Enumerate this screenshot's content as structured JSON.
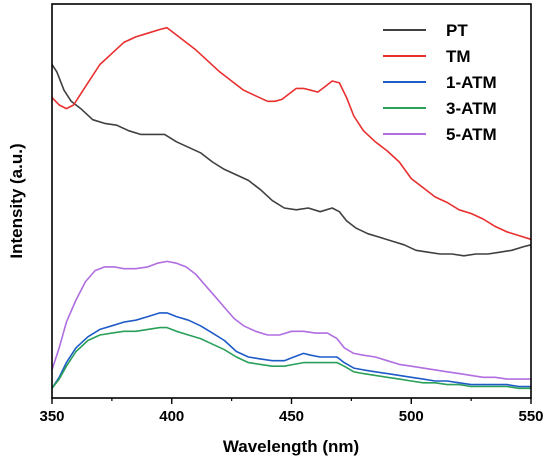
{
  "chart_data": {
    "type": "line",
    "xlabel": "Wavelength (nm)",
    "ylabel": "Intensity (a.u.)",
    "xlim": [
      350,
      550
    ],
    "ylim": [
      0,
      100
    ],
    "x_ticks": [
      "350",
      "400",
      "450",
      "500",
      "550"
    ],
    "y_ticks_shown": false,
    "grid": false,
    "legend_position": "top-right",
    "series": [
      {
        "name": "PT",
        "color": "#404040",
        "points": [
          [
            350,
            89
          ],
          [
            352,
            87
          ],
          [
            355,
            82
          ],
          [
            358,
            79
          ],
          [
            362,
            77
          ],
          [
            367,
            74
          ],
          [
            372,
            73
          ],
          [
            377,
            72.5
          ],
          [
            382,
            71
          ],
          [
            387,
            70
          ],
          [
            392,
            70
          ],
          [
            397,
            70
          ],
          [
            402,
            68
          ],
          [
            407,
            66.5
          ],
          [
            412,
            65
          ],
          [
            417,
            62.5
          ],
          [
            422,
            60.5
          ],
          [
            427,
            59
          ],
          [
            432,
            57.5
          ],
          [
            437,
            55
          ],
          [
            442,
            52
          ],
          [
            447,
            50
          ],
          [
            452,
            49.5
          ],
          [
            457,
            50
          ],
          [
            462,
            49
          ],
          [
            467,
            50
          ],
          [
            470,
            49
          ],
          [
            473,
            46.5
          ],
          [
            477,
            44.5
          ],
          [
            482,
            43
          ],
          [
            487,
            42
          ],
          [
            492,
            41
          ],
          [
            497,
            40
          ],
          [
            502,
            38.5
          ],
          [
            507,
            38
          ],
          [
            512,
            37.5
          ],
          [
            517,
            37.5
          ],
          [
            522,
            37
          ],
          [
            527,
            37.5
          ],
          [
            532,
            37.5
          ],
          [
            537,
            38
          ],
          [
            542,
            38.5
          ],
          [
            547,
            39.5
          ],
          [
            550,
            40
          ]
        ]
      },
      {
        "name": "TM",
        "color": "#e8302f",
        "points": [
          [
            350,
            80
          ],
          [
            353,
            78
          ],
          [
            356,
            77
          ],
          [
            359,
            78
          ],
          [
            362,
            81
          ],
          [
            366,
            85
          ],
          [
            370,
            89
          ],
          [
            375,
            92
          ],
          [
            380,
            95
          ],
          [
            385,
            96.5
          ],
          [
            390,
            97.5
          ],
          [
            395,
            98.5
          ],
          [
            398,
            99
          ],
          [
            402,
            97
          ],
          [
            406,
            95
          ],
          [
            410,
            93
          ],
          [
            415,
            90
          ],
          [
            420,
            87
          ],
          [
            425,
            84.5
          ],
          [
            430,
            82
          ],
          [
            435,
            80.5
          ],
          [
            440,
            79
          ],
          [
            443,
            79
          ],
          [
            446,
            79.5
          ],
          [
            449,
            81
          ],
          [
            452,
            82.5
          ],
          [
            455,
            82.5
          ],
          [
            458,
            82
          ],
          [
            461,
            81.5
          ],
          [
            464,
            83
          ],
          [
            467,
            84.5
          ],
          [
            470,
            84
          ],
          [
            473,
            80
          ],
          [
            476,
            75
          ],
          [
            480,
            71
          ],
          [
            485,
            68
          ],
          [
            490,
            65.5
          ],
          [
            495,
            62.5
          ],
          [
            500,
            58
          ],
          [
            505,
            55.5
          ],
          [
            510,
            53
          ],
          [
            515,
            51.5
          ],
          [
            520,
            49.5
          ],
          [
            525,
            48.5
          ],
          [
            530,
            47
          ],
          [
            535,
            45
          ],
          [
            540,
            43.5
          ],
          [
            545,
            42.5
          ],
          [
            550,
            41.5
          ]
        ]
      },
      {
        "name": "1-ATM",
        "color": "#1f5cc8",
        "points": [
          [
            350,
            1
          ],
          [
            353,
            4
          ],
          [
            356,
            8
          ],
          [
            360,
            12
          ],
          [
            365,
            15
          ],
          [
            370,
            17
          ],
          [
            375,
            18
          ],
          [
            380,
            19
          ],
          [
            385,
            19.5
          ],
          [
            390,
            20.5
          ],
          [
            395,
            21.5
          ],
          [
            398,
            21.5
          ],
          [
            402,
            20.5
          ],
          [
            407,
            19.5
          ],
          [
            412,
            18
          ],
          [
            417,
            16
          ],
          [
            422,
            14
          ],
          [
            427,
            11
          ],
          [
            432,
            9.5
          ],
          [
            437,
            9
          ],
          [
            442,
            8.5
          ],
          [
            447,
            8.5
          ],
          [
            451,
            9.5
          ],
          [
            455,
            10.5
          ],
          [
            458,
            10
          ],
          [
            462,
            9.5
          ],
          [
            466,
            9.5
          ],
          [
            469,
            9.5
          ],
          [
            472,
            8
          ],
          [
            476,
            6.5
          ],
          [
            480,
            6
          ],
          [
            485,
            5.5
          ],
          [
            490,
            5
          ],
          [
            495,
            4.5
          ],
          [
            500,
            4
          ],
          [
            505,
            3.5
          ],
          [
            510,
            3
          ],
          [
            515,
            3
          ],
          [
            520,
            2.5
          ],
          [
            525,
            2
          ],
          [
            530,
            2
          ],
          [
            535,
            2
          ],
          [
            540,
            2
          ],
          [
            545,
            1.5
          ],
          [
            550,
            1.5
          ]
        ]
      },
      {
        "name": "3-ATM",
        "color": "#2aa05a",
        "points": [
          [
            350,
            1
          ],
          [
            353,
            3.5
          ],
          [
            356,
            7
          ],
          [
            360,
            11
          ],
          [
            365,
            14
          ],
          [
            370,
            15.5
          ],
          [
            375,
            16
          ],
          [
            380,
            16.5
          ],
          [
            385,
            16.5
          ],
          [
            390,
            17
          ],
          [
            395,
            17.5
          ],
          [
            398,
            17.5
          ],
          [
            402,
            16.5
          ],
          [
            407,
            15.5
          ],
          [
            412,
            14.5
          ],
          [
            417,
            13
          ],
          [
            422,
            11.5
          ],
          [
            427,
            9.5
          ],
          [
            432,
            8
          ],
          [
            437,
            7.5
          ],
          [
            442,
            7
          ],
          [
            447,
            7
          ],
          [
            451,
            7.5
          ],
          [
            455,
            8
          ],
          [
            460,
            8
          ],
          [
            465,
            8
          ],
          [
            469,
            8
          ],
          [
            472,
            7
          ],
          [
            476,
            5.5
          ],
          [
            480,
            5
          ],
          [
            485,
            4.5
          ],
          [
            490,
            4
          ],
          [
            495,
            3.5
          ],
          [
            500,
            3
          ],
          [
            505,
            2.5
          ],
          [
            510,
            2.5
          ],
          [
            515,
            2
          ],
          [
            520,
            2
          ],
          [
            525,
            1.5
          ],
          [
            530,
            1.5
          ],
          [
            535,
            1.5
          ],
          [
            540,
            1.5
          ],
          [
            545,
            1
          ],
          [
            550,
            1
          ]
        ]
      },
      {
        "name": "5-ATM",
        "color": "#b06ee0",
        "points": [
          [
            350,
            6
          ],
          [
            353,
            12
          ],
          [
            356,
            19
          ],
          [
            360,
            25
          ],
          [
            364,
            30
          ],
          [
            368,
            33
          ],
          [
            372,
            34
          ],
          [
            376,
            34
          ],
          [
            380,
            33.5
          ],
          [
            385,
            33.5
          ],
          [
            390,
            34
          ],
          [
            394,
            35
          ],
          [
            398,
            35.5
          ],
          [
            402,
            35
          ],
          [
            406,
            34
          ],
          [
            410,
            32
          ],
          [
            414,
            29
          ],
          [
            418,
            26
          ],
          [
            422,
            23
          ],
          [
            426,
            20
          ],
          [
            430,
            18
          ],
          [
            435,
            16.5
          ],
          [
            440,
            15.5
          ],
          [
            445,
            15.5
          ],
          [
            450,
            16.5
          ],
          [
            455,
            16.5
          ],
          [
            460,
            16
          ],
          [
            465,
            16
          ],
          [
            469,
            14.5
          ],
          [
            472,
            12
          ],
          [
            476,
            10.5
          ],
          [
            480,
            10
          ],
          [
            485,
            9.5
          ],
          [
            490,
            8.5
          ],
          [
            495,
            7.5
          ],
          [
            500,
            7
          ],
          [
            505,
            6.5
          ],
          [
            510,
            6
          ],
          [
            515,
            5.5
          ],
          [
            520,
            5
          ],
          [
            525,
            4.5
          ],
          [
            530,
            4
          ],
          [
            535,
            4
          ],
          [
            540,
            3.5
          ],
          [
            545,
            3.5
          ],
          [
            550,
            3.5
          ]
        ]
      }
    ]
  }
}
